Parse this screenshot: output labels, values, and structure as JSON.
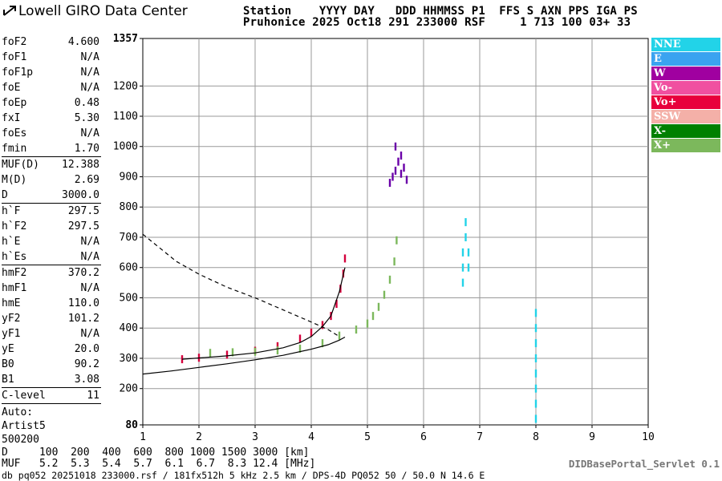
{
  "header": {
    "logo_text": "Lowell GIRO Data Center",
    "line1": "Station    YYYY DAY   DDD HHMMSS P1  FFS S AXN PPS IGA PS",
    "line2": "Pruhonice 2025 Oct18 291 233000 RSF     1 713 100 03+ 33"
  },
  "params": {
    "group1": [
      {
        "name": "foF2",
        "value": "4.600"
      },
      {
        "name": "foF1",
        "value": "N/A"
      },
      {
        "name": "foF1p",
        "value": "N/A"
      },
      {
        "name": "foE",
        "value": "N/A"
      },
      {
        "name": "foEp",
        "value": "0.48"
      },
      {
        "name": "fxI",
        "value": "5.30"
      },
      {
        "name": "foEs",
        "value": "N/A"
      },
      {
        "name": "fmin",
        "value": "1.70"
      }
    ],
    "group2": [
      {
        "name": "MUF(D)",
        "value": "12.388"
      },
      {
        "name": "M(D)",
        "value": "2.69"
      },
      {
        "name": "D",
        "value": "3000.0"
      }
    ],
    "group3": [
      {
        "name": "h`F",
        "value": "297.5"
      },
      {
        "name": "h`F2",
        "value": "297.5"
      },
      {
        "name": "h`E",
        "value": "N/A"
      },
      {
        "name": "h`Es",
        "value": "N/A"
      }
    ],
    "group4": [
      {
        "name": "hmF2",
        "value": "370.2"
      },
      {
        "name": "hmF1",
        "value": "N/A"
      },
      {
        "name": "hmE",
        "value": "110.0"
      },
      {
        "name": "yF2",
        "value": "101.2"
      },
      {
        "name": "yF1",
        "value": "N/A"
      },
      {
        "name": "yE",
        "value": "20.0"
      },
      {
        "name": "B0",
        "value": "90.2"
      },
      {
        "name": "B1",
        "value": "3.08"
      }
    ],
    "group5": [
      {
        "name": "C-level",
        "value": "11"
      }
    ],
    "auto_lines": [
      "Auto:",
      "Artist5",
      "500200"
    ]
  },
  "legend": [
    {
      "label": "NNE",
      "color": "#22d3e8"
    },
    {
      "label": "E",
      "color": "#3aa3f0"
    },
    {
      "label": "W",
      "color": "#a000a0"
    },
    {
      "label": "Vo-",
      "color": "#f050a0"
    },
    {
      "label": "Vo+",
      "color": "#e8003c"
    },
    {
      "label": "SSW",
      "color": "#f4b0a8"
    },
    {
      "label": "X-",
      "color": "#008000"
    },
    {
      "label": "X+",
      "color": "#7cb85c"
    }
  ],
  "footer": {
    "d_line": "D     100  200  400  600  800 1000 1500 3000 [km]",
    "muf_line": "MUF   5.2  5.3  5.4  5.7  6.1  6.7  8.3 12.4 [MHz]",
    "file_line": "db pq052 20251018 233000.rsf / 181fx512h 5 kHz 2.5 km / DPS-4D PQ052 50 / 50.0 N 14.6 E",
    "servlet": "DIDBasePortal_Servlet 0.1"
  },
  "chart_data": {
    "type": "scatter",
    "xlim": [
      1,
      10
    ],
    "ylim": [
      80,
      1357
    ],
    "x_ticks": [
      "1",
      "2",
      "3",
      "4",
      "5",
      "6",
      "7",
      "8",
      "9",
      "10"
    ],
    "y_ticks": [
      "80",
      "200",
      "300",
      "400",
      "500",
      "600",
      "700",
      "800",
      "900",
      "1000",
      "1100",
      "1200",
      "1357"
    ],
    "grid": true,
    "traces": [
      {
        "name": "O-trace (Vo+)",
        "color": "#d4003c",
        "x": [
          1.7,
          2.0,
          2.5,
          3.0,
          3.4,
          3.8,
          4.0,
          4.2,
          4.35,
          4.45,
          4.52,
          4.57,
          4.6
        ],
        "y": [
          297,
          302,
          312,
          325,
          340,
          365,
          385,
          410,
          440,
          480,
          530,
          580,
          630
        ]
      },
      {
        "name": "X-trace (X+)",
        "color": "#7cb85c",
        "x": [
          2.2,
          2.6,
          3.0,
          3.4,
          3.8,
          4.2,
          4.5,
          4.8,
          5.0,
          5.1,
          5.2,
          5.3,
          5.4,
          5.48,
          5.52
        ],
        "y": [
          318,
          320,
          322,
          326,
          332,
          350,
          375,
          395,
          415,
          440,
          470,
          510,
          560,
          620,
          690
        ]
      },
      {
        "name": "E-echo cluster (E/NNE)",
        "color": "#22d3e8",
        "x": [
          6.7,
          6.7,
          6.7,
          6.75,
          6.75,
          6.8,
          6.8,
          8.0,
          8.0,
          8.0,
          8.0,
          8.0,
          8.0,
          8.0,
          8.0
        ],
        "y": [
          550,
          600,
          650,
          700,
          750,
          650,
          600,
          100,
          150,
          200,
          250,
          300,
          350,
          400,
          450
        ]
      },
      {
        "name": "F-spread cluster (W)",
        "color": "#6a00a8",
        "x": [
          5.4,
          5.45,
          5.5,
          5.55,
          5.6,
          5.65,
          5.7,
          5.5,
          5.6
        ],
        "y": [
          880,
          900,
          920,
          950,
          910,
          930,
          890,
          1000,
          970
        ]
      }
    ],
    "profile_curves": [
      {
        "name": "true-height profile",
        "style": "solid",
        "x": [
          1.0,
          1.5,
          2.0,
          2.5,
          3.0,
          3.5,
          4.0,
          4.3,
          4.5,
          4.6
        ],
        "y": [
          248,
          258,
          270,
          282,
          295,
          310,
          330,
          345,
          360,
          370
        ]
      },
      {
        "name": "O-trace model",
        "style": "solid",
        "x": [
          1.7,
          2.5,
          3.0,
          3.5,
          3.8,
          4.0,
          4.2,
          4.35,
          4.5,
          4.6
        ],
        "y": [
          297,
          308,
          318,
          335,
          352,
          372,
          405,
          440,
          520,
          600
        ]
      },
      {
        "name": "MUF curve",
        "style": "dashed",
        "x": [
          1.0,
          1.3,
          1.6,
          2.0,
          2.5,
          3.0,
          3.5,
          4.0,
          4.3,
          4.5
        ],
        "y": [
          710,
          665,
          620,
          578,
          535,
          500,
          460,
          420,
          395,
          372
        ]
      }
    ]
  }
}
